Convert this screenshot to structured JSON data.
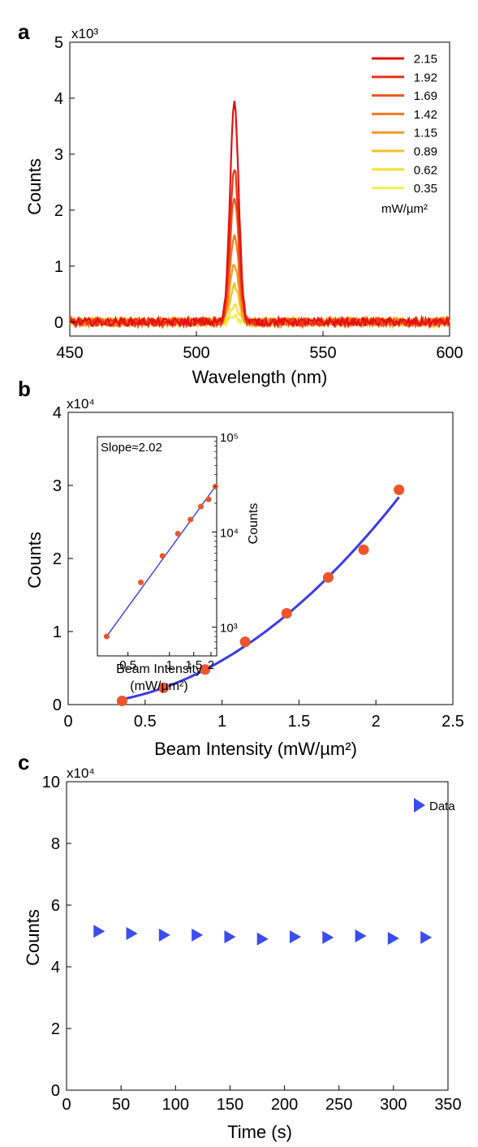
{
  "chart_data": [
    {
      "panel": "a",
      "type": "line",
      "multiplier": "x10³",
      "xlabel": "Wavelength (nm)",
      "ylabel": "Counts",
      "xlim": [
        450,
        600
      ],
      "ylim": [
        -0.25,
        5
      ],
      "xticks": [
        "450",
        "500",
        "550",
        "600"
      ],
      "yticks": [
        "0",
        "1",
        "2",
        "3",
        "4",
        "5"
      ],
      "legend_position": "top-right",
      "legend_unit": "mW/µm²",
      "peak_center": 515,
      "peak_sigma": 1.7,
      "noise_amplitude": 0.07,
      "series": [
        {
          "name": "2.15",
          "color": "#e60f0f",
          "peak": 3.95
        },
        {
          "name": "1.92",
          "color": "#ea3214",
          "peak": 2.75
        },
        {
          "name": "1.69",
          "color": "#ef5619",
          "peak": 2.25
        },
        {
          "name": "1.42",
          "color": "#f2781e",
          "peak": 1.57
        },
        {
          "name": "1.15",
          "color": "#f59b23",
          "peak": 1.03
        },
        {
          "name": "0.89",
          "color": "#f8c02a",
          "peak": 0.65
        },
        {
          "name": "0.62",
          "color": "#f8e12c",
          "peak": 0.27
        },
        {
          "name": "0.35",
          "color": "#f2f04a",
          "peak": 0.08
        }
      ]
    },
    {
      "panel": "b",
      "type": "scatter",
      "multiplier": "x10⁴",
      "xlabel": "Beam Intensity (mW/µm²)",
      "ylabel": "Counts",
      "xlim": [
        0,
        2.5
      ],
      "ylim": [
        0,
        4
      ],
      "xticks": [
        "0",
        "0.5",
        "1",
        "1.5",
        "2",
        "2.5"
      ],
      "yticks": [
        "0",
        "1",
        "2",
        "3",
        "4"
      ],
      "point_color": "#f0542a",
      "fit_color": "#3b3be6",
      "points": [
        {
          "x": 0.35,
          "y": 0.05
        },
        {
          "x": 0.62,
          "y": 0.23
        },
        {
          "x": 0.89,
          "y": 0.48
        },
        {
          "x": 1.15,
          "y": 0.86
        },
        {
          "x": 1.42,
          "y": 1.25
        },
        {
          "x": 1.69,
          "y": 1.74
        },
        {
          "x": 1.92,
          "y": 2.12
        },
        {
          "x": 2.15,
          "y": 2.94
        }
      ],
      "fit": {
        "coefficient": 0.605,
        "exponent": 2.02,
        "x_range": [
          0.35,
          2.15
        ]
      },
      "inset": {
        "type": "scatter",
        "scale": "log-log",
        "xlabel_line1": "Beam Intensity",
        "xlabel_line2": "(mW/µm²)",
        "ylabel": "Counts",
        "xlim": [
          0.3,
          2.2
        ],
        "ylim": [
          500,
          100000
        ],
        "xticks": [
          "0.5",
          "1",
          "1.5",
          "2"
        ],
        "yticks": [
          "10³",
          "10⁴",
          "10⁵"
        ],
        "annotation": "Slope≈2.02",
        "points": [
          {
            "x": 0.35,
            "y": 800
          },
          {
            "x": 0.62,
            "y": 2950
          },
          {
            "x": 0.89,
            "y": 5600
          },
          {
            "x": 1.15,
            "y": 9600
          },
          {
            "x": 1.42,
            "y": 13500
          },
          {
            "x": 1.69,
            "y": 18500
          },
          {
            "x": 1.92,
            "y": 22000
          },
          {
            "x": 2.15,
            "y": 30000
          }
        ]
      }
    },
    {
      "panel": "c",
      "type": "scatter",
      "multiplier": "x10⁴",
      "xlabel": "Time (s)",
      "ylabel": "Counts",
      "xlim": [
        0,
        350
      ],
      "ylim": [
        0,
        10
      ],
      "xticks": [
        "0",
        "50",
        "100",
        "150",
        "200",
        "250",
        "300",
        "350"
      ],
      "yticks": [
        "0",
        "2",
        "4",
        "6",
        "8",
        "10"
      ],
      "legend_position": "top-right",
      "marker_color": "#3b4cf0",
      "series": [
        {
          "name": "Data",
          "points": [
            {
              "x": 30,
              "y": 5.15
            },
            {
              "x": 60,
              "y": 5.08
            },
            {
              "x": 90,
              "y": 5.03
            },
            {
              "x": 120,
              "y": 5.03
            },
            {
              "x": 150,
              "y": 4.97
            },
            {
              "x": 180,
              "y": 4.9
            },
            {
              "x": 210,
              "y": 4.97
            },
            {
              "x": 240,
              "y": 4.95
            },
            {
              "x": 270,
              "y": 5.0
            },
            {
              "x": 300,
              "y": 4.92
            },
            {
              "x": 330,
              "y": 4.95
            }
          ]
        }
      ]
    }
  ]
}
